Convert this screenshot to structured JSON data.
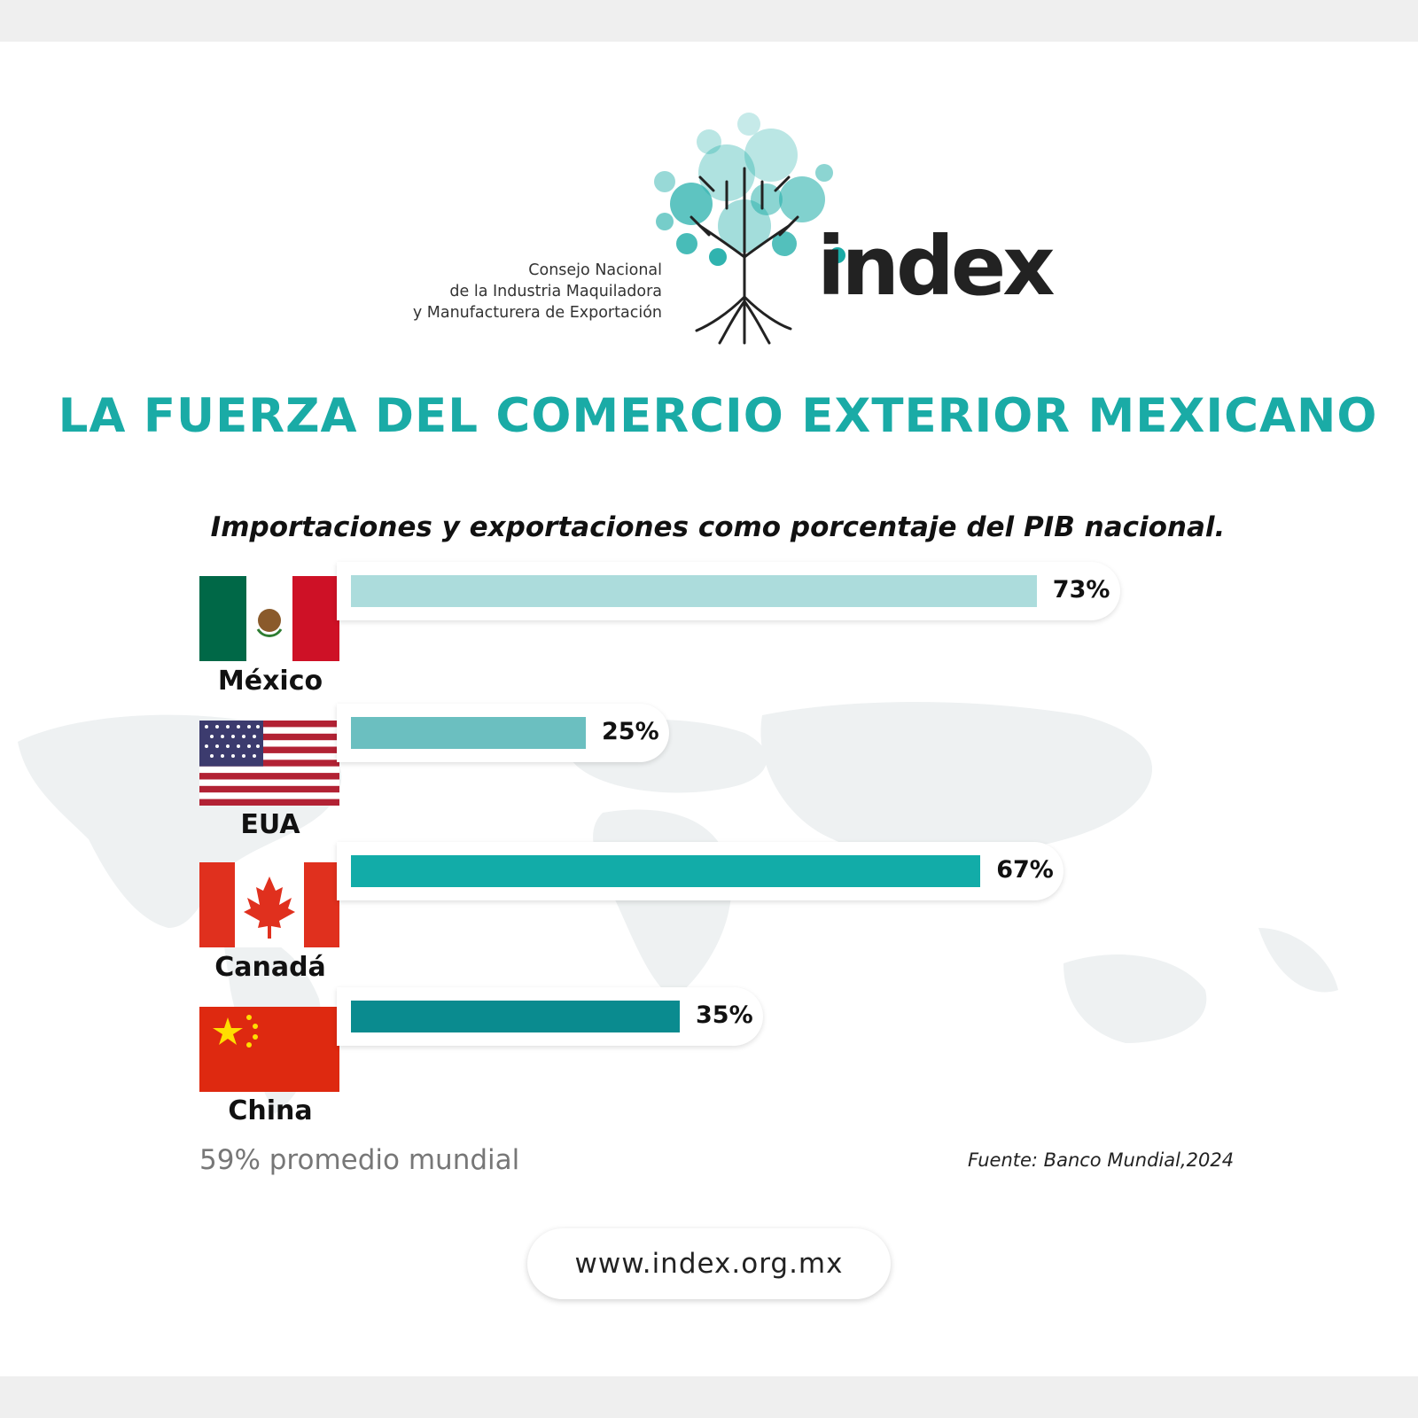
{
  "brand": {
    "org_lines": [
      "Consejo Nacional",
      "de la Industria Maquiladora",
      "y Manufacturera de Exportación"
    ],
    "wordmark": "index",
    "colors": {
      "teal": "#1aaba6",
      "light_teal": "#a9dcdc",
      "dark_teal": "#0b8a8d"
    }
  },
  "chart_data": {
    "type": "bar",
    "orientation": "horizontal",
    "title": "LA FUERZA DEL COMERCIO EXTERIOR MEXICANO",
    "subtitle": "Importaciones y exportaciones como porcentaje del PIB nacional.",
    "categories": [
      "México",
      "EUA",
      "Canadá",
      "China"
    ],
    "values": [
      73,
      25,
      67,
      35
    ],
    "value_labels": [
      "73%",
      "25%",
      "67%",
      "35%"
    ],
    "bar_colors": [
      "#acdcdc",
      "#6bbfc0",
      "#12aca8",
      "#0a8b8f"
    ],
    "flags": [
      "mexico-flag",
      "usa-flag",
      "canada-flag",
      "china-flag"
    ],
    "unit": "%",
    "xlim": [
      0,
      100
    ],
    "grid": false,
    "note": "59% promedio mundial",
    "source": "Fuente: Banco Mundial,2024"
  },
  "footer": {
    "url": "www.index.org.mx"
  }
}
